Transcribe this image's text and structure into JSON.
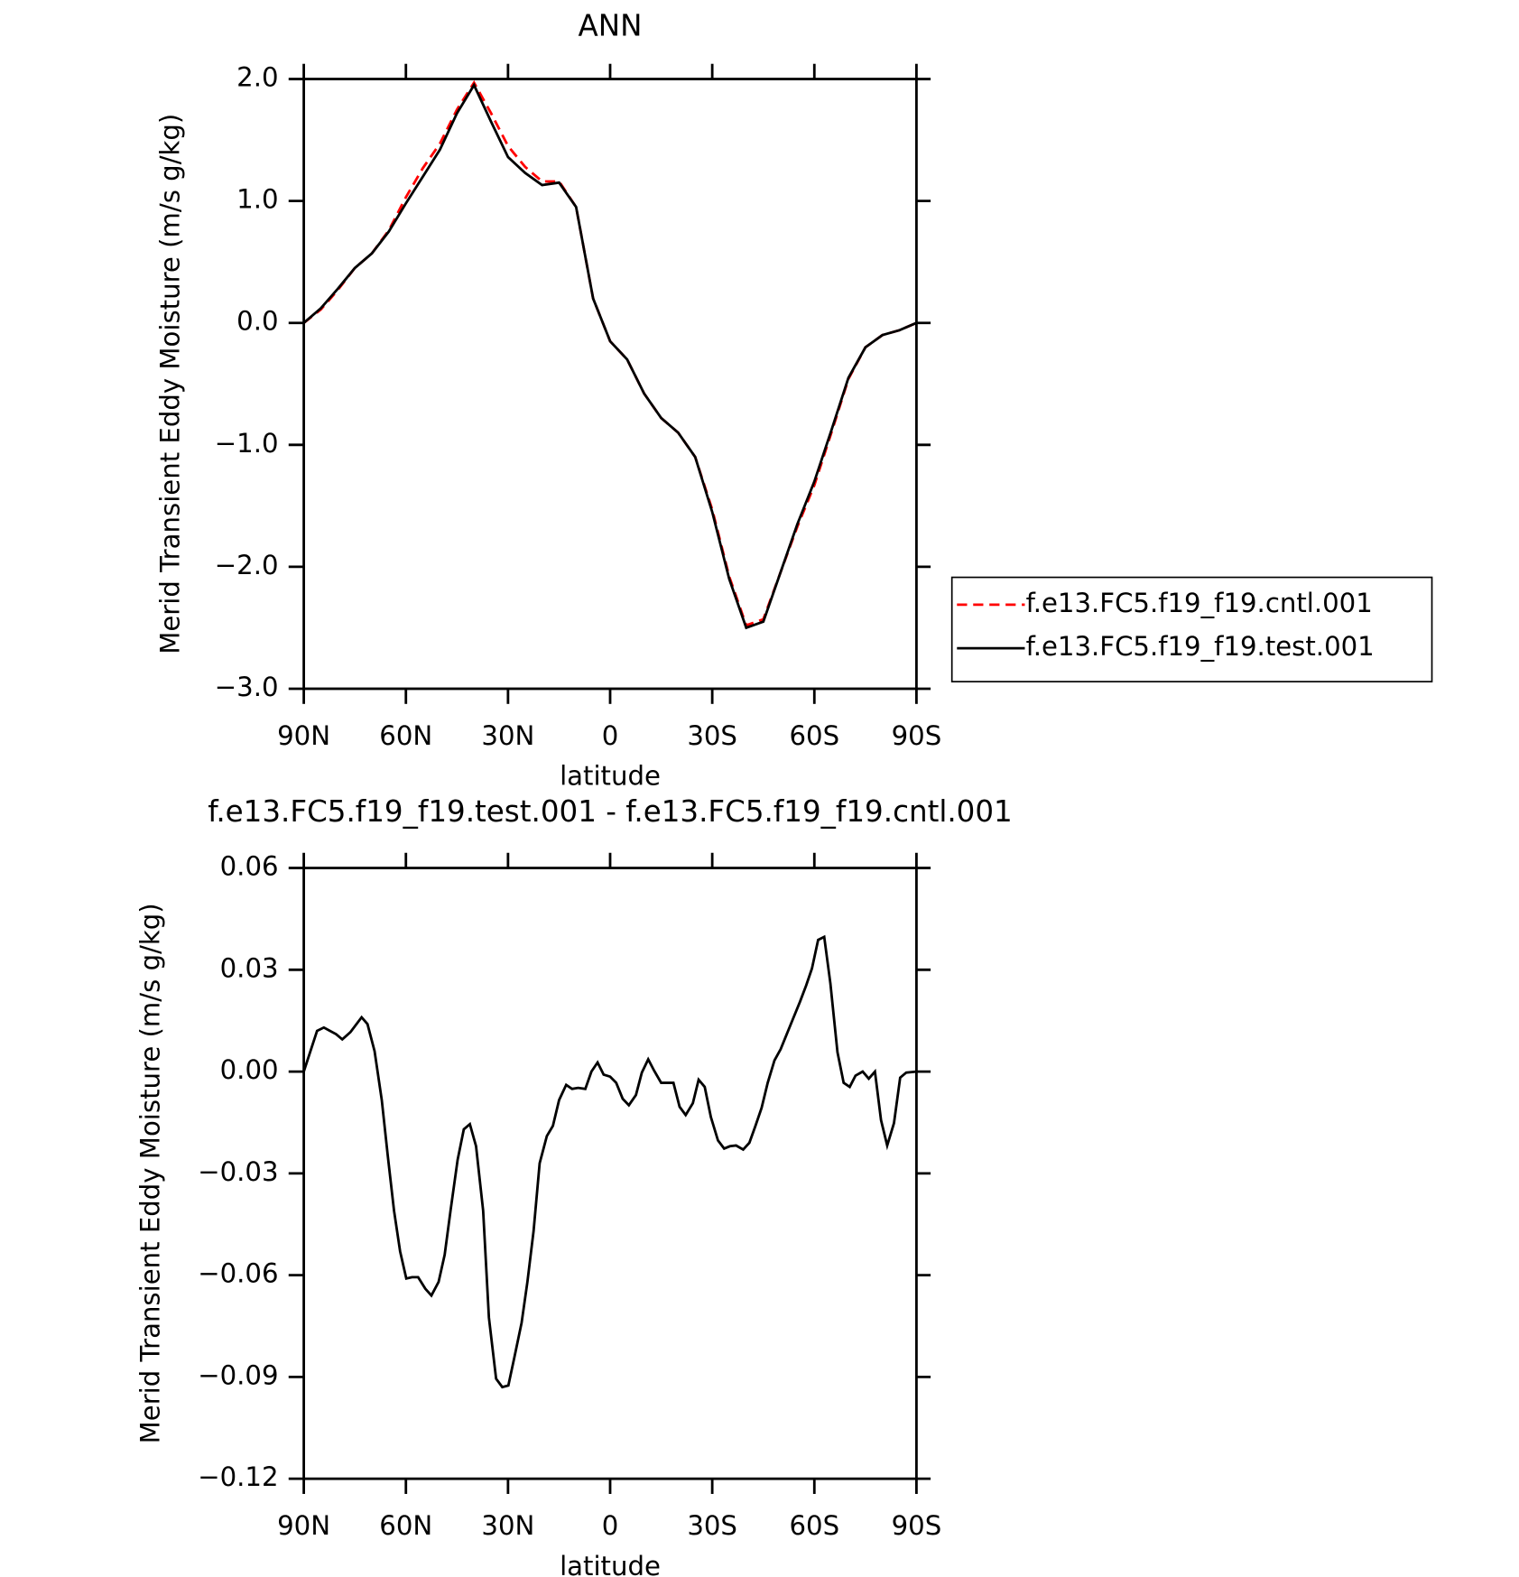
{
  "chart_data": [
    {
      "type": "line",
      "title": "ANN",
      "xlabel": "latitude",
      "ylabel": "Merid Transient Eddy Moisture (m/s g/kg)",
      "x": [
        90,
        85,
        80,
        75,
        70,
        65,
        60,
        55,
        50,
        45,
        40,
        35,
        30,
        25,
        20,
        15,
        10,
        5,
        0,
        -5,
        -10,
        -15,
        -20,
        -25,
        -30,
        -35,
        -40,
        -45,
        -50,
        -55,
        -60,
        -65,
        -70,
        -75,
        -80,
        -85,
        -90
      ],
      "series": [
        {
          "name": "f.e13.FC5.f19_f19.cntl.001",
          "color": "#ff0000",
          "line_style": "dashed",
          "values": [
            0,
            0.11,
            0.27,
            0.45,
            0.57,
            0.76,
            1.03,
            1.27,
            1.47,
            1.75,
            1.97,
            1.72,
            1.45,
            1.28,
            1.16,
            1.16,
            0.95,
            0.2,
            -0.15,
            -0.3,
            -0.58,
            -0.78,
            -0.9,
            -1.1,
            -1.53,
            -2.08,
            -2.48,
            -2.43,
            -2.05,
            -1.67,
            -1.33,
            -0.9,
            -0.46,
            -0.2,
            -0.1,
            -0.06,
            0
          ]
        },
        {
          "name": "f.e13.FC5.f19_f19.test.001",
          "color": "#000000",
          "line_style": "solid",
          "values": [
            0,
            0.12,
            0.28,
            0.45,
            0.57,
            0.75,
            0.98,
            1.2,
            1.42,
            1.72,
            1.95,
            1.65,
            1.36,
            1.23,
            1.13,
            1.15,
            0.95,
            0.2,
            -0.15,
            -0.3,
            -0.58,
            -0.78,
            -0.9,
            -1.1,
            -1.55,
            -2.1,
            -2.5,
            -2.45,
            -2.05,
            -1.65,
            -1.3,
            -0.88,
            -0.45,
            -0.2,
            -0.1,
            -0.06,
            0
          ]
        }
      ],
      "xlim": [
        90,
        -90
      ],
      "xticks": [
        {
          "value": 90,
          "label": "90N"
        },
        {
          "value": 60,
          "label": "60N"
        },
        {
          "value": 30,
          "label": "30N"
        },
        0,
        {
          "value": -30,
          "label": "30S"
        },
        {
          "value": -60,
          "label": "60S"
        },
        {
          "value": -90,
          "label": "90S"
        }
      ],
      "ylim": [
        -3,
        2
      ],
      "yticks": [
        {
          "value": 2,
          "label": "2.0"
        },
        {
          "value": 1,
          "label": "1.0"
        },
        {
          "value": 0,
          "label": "0.0"
        },
        {
          "value": -1,
          "label": "−1.0"
        },
        {
          "value": -2,
          "label": "−2.0"
        },
        {
          "value": -3,
          "label": "−3.0"
        }
      ],
      "grid": false,
      "legend": "right"
    },
    {
      "type": "line",
      "title": "f.e13.FC5.f19_f19.test.001 - f.e13.FC5.f19_f19.cntl.001",
      "xlabel": "latitude",
      "ylabel": "Merid Transient Eddy Moisture (m/s g/kg)",
      "x": [
        90,
        86.1,
        84.1,
        80.5,
        78.7,
        76.3,
        73.0,
        71.3,
        69.2,
        67.1,
        65.3,
        63.5,
        61.7,
        59.9,
        58.2,
        56.4,
        54.3,
        52.5,
        50.4,
        48.6,
        46.9,
        44.8,
        43.0,
        41.2,
        39.4,
        37.3,
        35.6,
        33.5,
        31.7,
        29.9,
        28.1,
        26.0,
        24.3,
        22.5,
        20.7,
        18.6,
        16.8,
        15.0,
        12.9,
        11.2,
        9.4,
        7.3,
        5.5,
        3.7,
        1.9,
        0,
        -1.8,
        -3.7,
        -5.5,
        -7.6,
        -9.3,
        -11.2,
        -12.9,
        -15.0,
        -16.8,
        -18.6,
        -20.4,
        -22.2,
        -24.3,
        -26.0,
        -27.8,
        -29.6,
        -31.7,
        -33.5,
        -35.2,
        -37.0,
        -39.1,
        -40.9,
        -42.7,
        -44.5,
        -46.3,
        -48.3,
        -50.1,
        -51.9,
        -53.7,
        -55.8,
        -57.6,
        -59.3,
        -61.1,
        -62.9,
        -64.7,
        -66.8,
        -68.6,
        -70.4,
        -72.1,
        -74.2,
        -76.0,
        -77.8,
        -79.6,
        -81.4,
        -83.4,
        -85.2,
        -87.0,
        -90
      ],
      "series": [
        {
          "name": "f.e13.FC5.f19_f19.test.001 - f.e13.FC5.f19_f19.cntl.001",
          "color": "#000000",
          "line_style": "solid",
          "values": [
            0,
            0.012,
            0.013,
            0.011,
            0.0095,
            0.0116,
            0.016,
            0.014,
            0.006,
            -0.0084,
            -0.025,
            -0.041,
            -0.053,
            -0.061,
            -0.0606,
            -0.0606,
            -0.064,
            -0.066,
            -0.062,
            -0.054,
            -0.041,
            -0.026,
            -0.017,
            -0.0155,
            -0.022,
            -0.041,
            -0.0725,
            -0.0905,
            -0.093,
            -0.0925,
            -0.084,
            -0.074,
            -0.062,
            -0.047,
            -0.027,
            -0.019,
            -0.016,
            -0.0084,
            -0.0039,
            -0.0051,
            -0.0048,
            -0.0051,
            0,
            0.0027,
            -0.0009,
            -0.0015,
            -0.0033,
            -0.008,
            -0.0099,
            -0.0069,
            -0.0003,
            0.0036,
            0.0003,
            -0.0033,
            -0.0033,
            -0.0033,
            -0.0104,
            -0.0128,
            -0.0093,
            -0.0024,
            -0.0045,
            -0.0134,
            -0.0203,
            -0.0227,
            -0.022,
            -0.0218,
            -0.023,
            -0.021,
            -0.016,
            -0.0107,
            -0.0033,
            0.0033,
            0.0066,
            0.011,
            0.0155,
            0.0206,
            0.0254,
            0.0304,
            0.0388,
            0.0397,
            0.026,
            0.0057,
            -0.0033,
            -0.0045,
            -0.0012,
            0,
            -0.0021,
            0,
            -0.0143,
            -0.0218,
            -0.0152,
            -0.0018,
            -0.0003,
            0
          ]
        }
      ],
      "xlim": [
        90,
        -90
      ],
      "xticks": [
        {
          "value": 90,
          "label": "90N"
        },
        {
          "value": 60,
          "label": "60N"
        },
        {
          "value": 30,
          "label": "30N"
        },
        0,
        {
          "value": -30,
          "label": "30S"
        },
        {
          "value": -60,
          "label": "60S"
        },
        {
          "value": -90,
          "label": "90S"
        }
      ],
      "ylim": [
        -0.12,
        0.06
      ],
      "yticks": [
        {
          "value": 0.06,
          "label": "0.06"
        },
        {
          "value": 0.03,
          "label": "0.03"
        },
        {
          "value": 0,
          "label": "0.00"
        },
        {
          "value": -0.03,
          "label": "−0.03"
        },
        {
          "value": -0.06,
          "label": "−0.06"
        },
        {
          "value": -0.09,
          "label": "−0.09"
        },
        {
          "value": -0.12,
          "label": "−0.12"
        }
      ],
      "grid": false
    }
  ]
}
